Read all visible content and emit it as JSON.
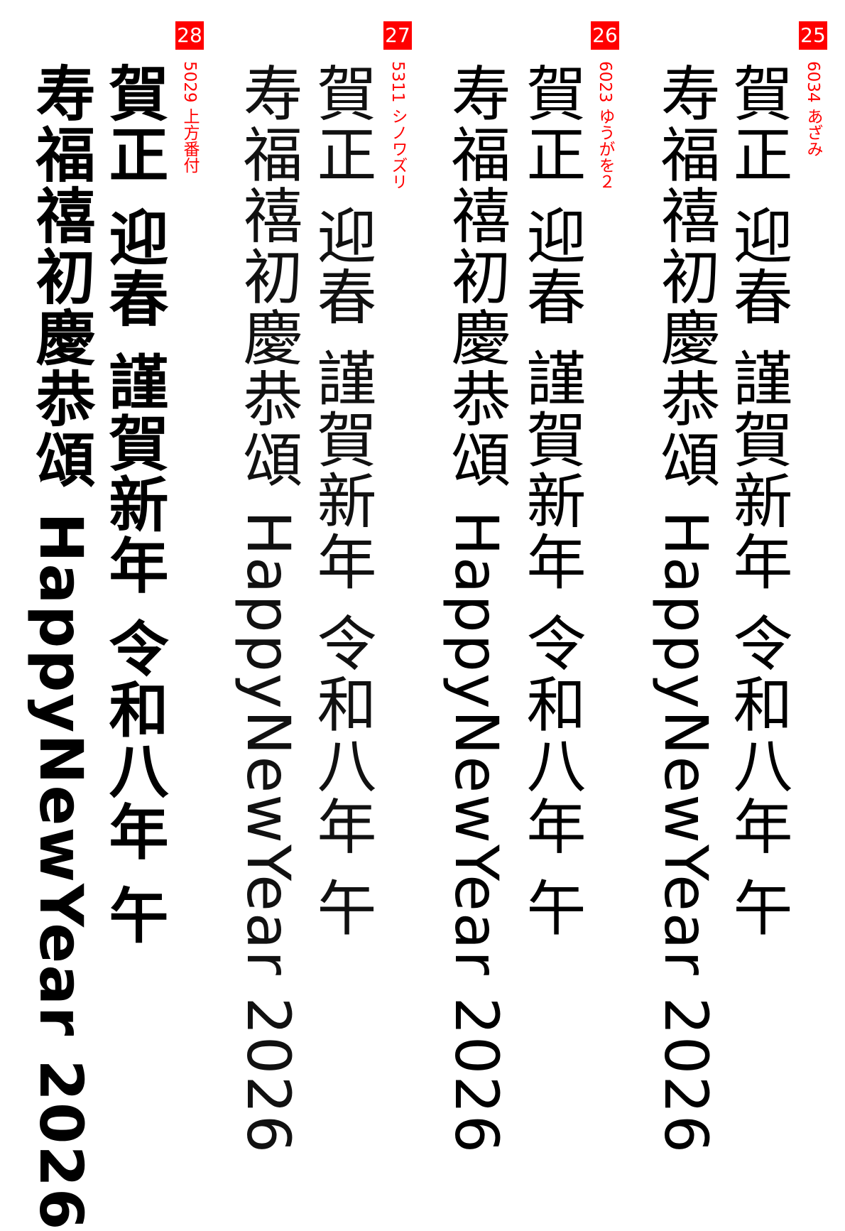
{
  "samples": [
    {
      "number": "25",
      "label": "6034 あざみ",
      "line1": "賀正 迎春 謹賀新年 令和八年 午",
      "line2": "寿福禧初慶恭頌 HappyNewYear 2026"
    },
    {
      "number": "26",
      "label": "6023 ゆうがを２",
      "line1": "賀正 迎春 謹賀新年 令和八年 午",
      "line2": "寿福禧初慶恭頌 HappyNewYear 2026"
    },
    {
      "number": "27",
      "label": "5311 シノワズリ",
      "line1": "賀正 迎春 謹賀新年 令和八年 午",
      "line2": "寿福禧初慶恭頌 HappyNewYear 2026"
    },
    {
      "number": "28",
      "label": "5029 上方番付",
      "line1": "賀正 迎春 謹賀新年 令和八年 午",
      "line2": "寿福禧初慶恭頌 HappyNewYear 2026"
    }
  ],
  "colors": {
    "accent": "#ff0000",
    "text": "#000000"
  }
}
